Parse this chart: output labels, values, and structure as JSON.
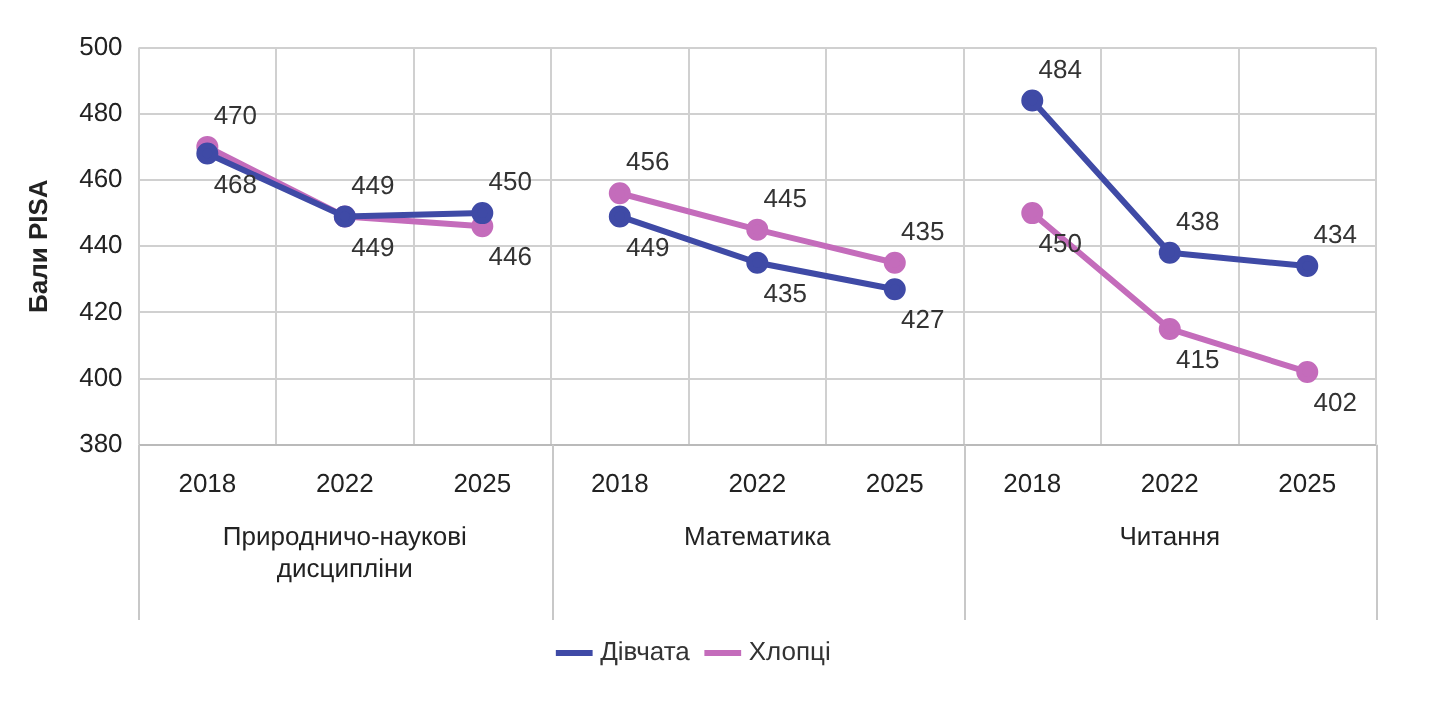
{
  "chart_data": {
    "type": "line",
    "ylabel": "Бали PISA",
    "categories": [
      "2018",
      "2022",
      "2025",
      "2018",
      "2022",
      "2025",
      "2018",
      "2022",
      "2025"
    ],
    "annotations": [
      "Природничо-наукові дисципліни",
      "Математика",
      "Читання"
    ],
    "series": [
      {
        "name": "Дівчата",
        "color": "#3f4aa6",
        "values": [
          468,
          449,
          450,
          null,
          null,
          null,
          null,
          null,
          null
        ]
      },
      {
        "name": "Хлопці",
        "color": "#c46cbb",
        "values": [
          470,
          449,
          446,
          null,
          null,
          null,
          null,
          null,
          null
        ]
      },
      {
        "color": "#3f4aa6",
        "values": [
          null,
          null,
          null,
          449,
          435,
          427,
          null,
          null,
          null
        ]
      },
      {
        "color": "#c46cbb",
        "values": [
          null,
          null,
          null,
          456,
          445,
          435,
          null,
          null,
          null
        ]
      },
      {
        "color": "#3f4aa6",
        "values": [
          null,
          null,
          null,
          null,
          null,
          null,
          484,
          438,
          434
        ]
      },
      {
        "color": "#c46cbb",
        "values": [
          null,
          null,
          null,
          null,
          null,
          null,
          450,
          415,
          402
        ]
      }
    ],
    "ylim": [
      380,
      500
    ],
    "yticks": [
      380,
      400,
      420,
      440,
      460,
      480,
      500
    ],
    "grid": true,
    "legend": "bottom",
    "marker": "circle",
    "line_style": "solid",
    "data_labels": true
  }
}
